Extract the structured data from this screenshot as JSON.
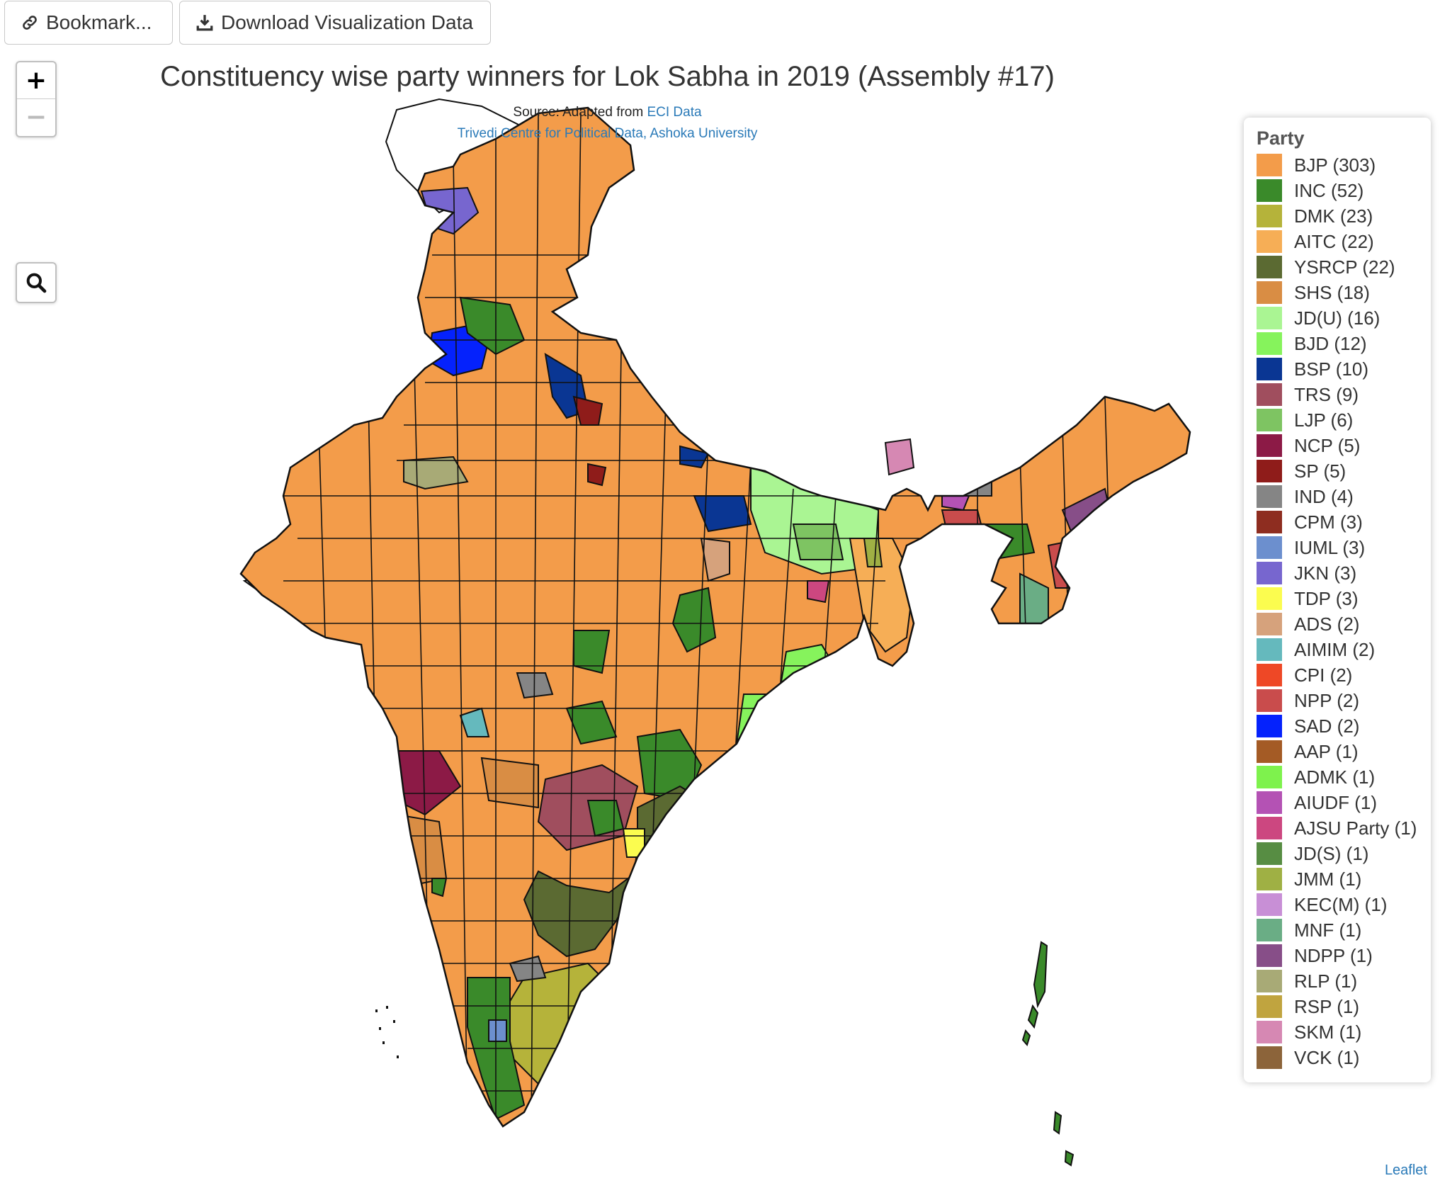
{
  "toolbar": {
    "bookmark_label": "Bookmark...",
    "bookmark_icon": "link-icon",
    "download_label": "Download Visualization Data",
    "download_icon": "download-icon"
  },
  "map_controls": {
    "zoom_in": "+",
    "zoom_out": "−",
    "search_icon": "magnifier-icon"
  },
  "header": {
    "title": "Constituency wise party winners for Lok Sabha in 2019 (Assembly #17)",
    "source_prefix": "Source: Adapted from ",
    "source_link": "ECI Data",
    "credit_link": "Trivedi Centre for Political Data, Ashoka University"
  },
  "legend": {
    "title": "Party",
    "items": [
      {
        "label": "BJP (303)",
        "color": "#f39c4a"
      },
      {
        "label": "INC (52)",
        "color": "#3a8a2a"
      },
      {
        "label": "DMK (23)",
        "color": "#b5b33a"
      },
      {
        "label": "AITC (22)",
        "color": "#f6ae56"
      },
      {
        "label": "YSRCP (22)",
        "color": "#5b6a32"
      },
      {
        "label": "SHS (18)",
        "color": "#d98d44"
      },
      {
        "label": "JD(U) (16)",
        "color": "#aaf593"
      },
      {
        "label": "BJD (12)",
        "color": "#86f35c"
      },
      {
        "label": "BSP (10)",
        "color": "#0a3693"
      },
      {
        "label": "TRS (9)",
        "color": "#a04e5e"
      },
      {
        "label": "LJP (6)",
        "color": "#7ec462"
      },
      {
        "label": "NCP (5)",
        "color": "#8c1a46"
      },
      {
        "label": "SP (5)",
        "color": "#8f1c1a"
      },
      {
        "label": "IND (4)",
        "color": "#858585"
      },
      {
        "label": "CPM (3)",
        "color": "#8e2d20"
      },
      {
        "label": "IUML (3)",
        "color": "#6c8fce"
      },
      {
        "label": "JKN (3)",
        "color": "#7766cf"
      },
      {
        "label": "TDP (3)",
        "color": "#fbfc4f"
      },
      {
        "label": "ADS (2)",
        "color": "#d6a27c"
      },
      {
        "label": "AIMIM (2)",
        "color": "#65b9bd"
      },
      {
        "label": "CPI (2)",
        "color": "#ee4826"
      },
      {
        "label": "NPP (2)",
        "color": "#c94c4c"
      },
      {
        "label": "SAD (2)",
        "color": "#0522fc"
      },
      {
        "label": "AAP (1)",
        "color": "#a45b25"
      },
      {
        "label": "ADMK (1)",
        "color": "#7ef24d"
      },
      {
        "label": "AIUDF (1)",
        "color": "#b452b4"
      },
      {
        "label": "AJSU Party (1)",
        "color": "#cc4780"
      },
      {
        "label": "JD(S) (1)",
        "color": "#578d43"
      },
      {
        "label": "JMM (1)",
        "color": "#9fb044"
      },
      {
        "label": "KEC(M) (1)",
        "color": "#c88fd6"
      },
      {
        "label": "MNF (1)",
        "color": "#6aad85"
      },
      {
        "label": "NDPP (1)",
        "color": "#874e88"
      },
      {
        "label": "RLP (1)",
        "color": "#a8aa76"
      },
      {
        "label": "RSP (1)",
        "color": "#c0a43f"
      },
      {
        "label": "SKM (1)",
        "color": "#d688b3"
      },
      {
        "label": "VCK (1)",
        "color": "#8c643a"
      }
    ]
  },
  "attribution": "Leaflet"
}
